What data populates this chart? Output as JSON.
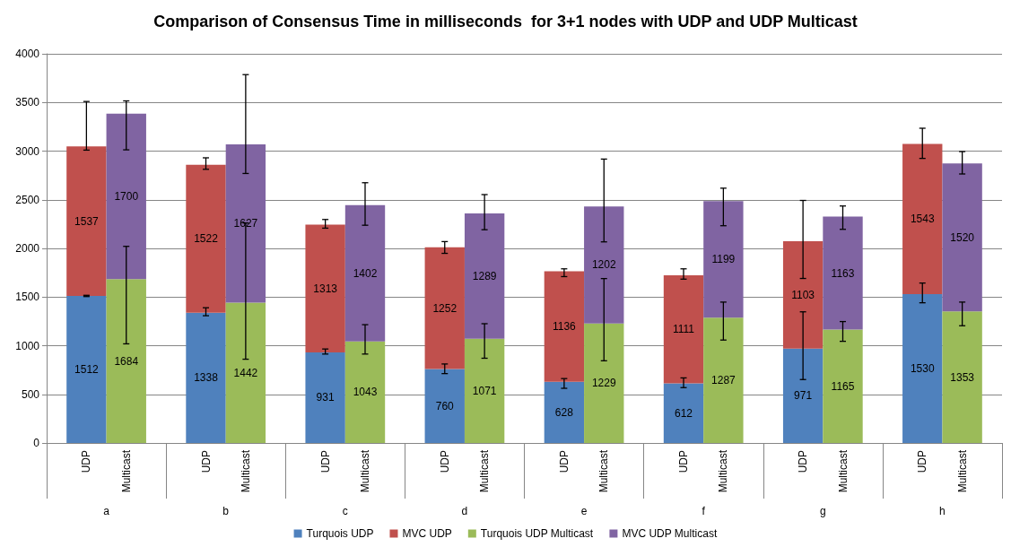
{
  "chart_data": {
    "type": "bar",
    "title": "Comparison of Consensus Time in milliseconds  for 3+1 nodes with UDP and UDP Multicast",
    "categories": [
      "UDP",
      "Multicast",
      "UDP",
      "Multicast",
      "UDP",
      "Multicast",
      "UDP",
      "Multicast",
      "UDP",
      "Multicast",
      "UDP",
      "Multicast",
      "UDP",
      "Multicast",
      "UDP",
      "Multicast"
    ],
    "annotations": [
      "a",
      "b",
      "c",
      "d",
      "e",
      "f",
      "g",
      "h"
    ],
    "stacked": true,
    "data_labels": true,
    "grid": "y",
    "legend": "bottom",
    "ylim": [
      0,
      4000
    ],
    "yticks": [
      0,
      500,
      1000,
      1500,
      2000,
      2500,
      3000,
      3500,
      4000
    ],
    "series": [
      {
        "name": "Turquois UDP",
        "color": "#4f81bd",
        "values": [
          1512,
          null,
          1338,
          null,
          931,
          null,
          760,
          null,
          628,
          null,
          612,
          null,
          971,
          null,
          1530,
          null
        ],
        "errors": [
          [
            1505,
            1518
          ],
          null,
          [
            1308,
            1390
          ],
          null,
          [
            914,
            966
          ],
          null,
          [
            713,
            812
          ],
          null,
          [
            562,
            662
          ],
          null,
          [
            569,
            669
          ],
          null,
          [
            652,
            1348
          ],
          null,
          [
            1441,
            1644
          ],
          null
        ]
      },
      {
        "name": "MVC UDP",
        "color": "#c0504d",
        "values": [
          1537,
          null,
          1522,
          null,
          1313,
          null,
          1252,
          null,
          1136,
          null,
          1111,
          null,
          1103,
          null,
          1543,
          null
        ],
        "errors": [
          [
            3010,
            3510
          ],
          null,
          [
            2813,
            2931
          ],
          null,
          [
            2208,
            2297
          ],
          null,
          [
            1949,
            2070
          ],
          null,
          [
            1710,
            1790
          ],
          null,
          [
            1684,
            1790
          ],
          null,
          [
            1691,
            2493
          ],
          null,
          [
            2925,
            3235
          ],
          null
        ]
      },
      {
        "name": "Turquois UDP Multicast",
        "color": "#9bbb59",
        "values": [
          null,
          1684,
          null,
          1442,
          null,
          1043,
          null,
          1071,
          null,
          1229,
          null,
          1287,
          null,
          1165,
          null,
          1353
        ],
        "errors": [
          null,
          [
            1019,
            2021
          ],
          null,
          [
            861,
            2261
          ],
          null,
          [
            914,
            1216
          ],
          null,
          [
            871,
            1226
          ],
          null,
          [
            845,
            1690
          ],
          null,
          [
            1058,
            1448
          ],
          null,
          [
            1045,
            1248
          ],
          null,
          [
            1205,
            1448
          ]
        ]
      },
      {
        "name": "MVC UDP Multicast",
        "color": "#8064a2",
        "values": [
          null,
          1700,
          null,
          1627,
          null,
          1402,
          null,
          1289,
          null,
          1202,
          null,
          1199,
          null,
          1163,
          null,
          1520
        ],
        "errors": [
          null,
          [
            3013,
            3516
          ],
          null,
          [
            2770,
            3786
          ],
          null,
          [
            2238,
            2675
          ],
          null,
          [
            2192,
            2553
          ],
          null,
          [
            2067,
            2918
          ],
          null,
          [
            2233,
            2619
          ],
          null,
          [
            2196,
            2436
          ],
          null,
          [
            2765,
            2995
          ]
        ]
      }
    ]
  }
}
